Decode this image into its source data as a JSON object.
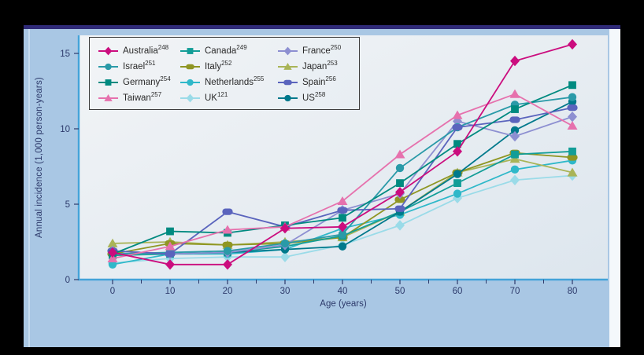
{
  "figure": {
    "kind": "epidemiology line figure",
    "palette": {
      "outer_background": "#000000",
      "panel_background": "#a9c7e4",
      "panel_top_border": "#2f2a78",
      "panel_right_strip": "#f4f8fb",
      "plot_background_start": "#f2f4f6",
      "plot_background_end": "#dde6ee",
      "axis_line": "#44a3d9",
      "tick_and_label_text": "#2d3a6b",
      "legend_border": "#3c3c3c",
      "legend_text": "#2a2a2a"
    }
  },
  "chart_data": {
    "type": "line",
    "title": "",
    "xlabel": "Age (years)",
    "ylabel": "Annual incidence (1,000 person-years)",
    "x": [
      0,
      10,
      20,
      30,
      40,
      50,
      60,
      70,
      80
    ],
    "x_tick_labels": [
      "0",
      "10",
      "20",
      "30",
      "40",
      "50",
      "60",
      "70",
      "80"
    ],
    "x_minor_ticks": [
      5,
      15,
      25,
      35,
      45,
      55,
      65,
      75
    ],
    "y_ticks": [
      0,
      5,
      10,
      15
    ],
    "y_tick_labels": [
      "0",
      "5",
      "10",
      "15"
    ],
    "ylim": [
      0,
      16.2
    ],
    "xlim": [
      -6,
      86
    ],
    "grid": false,
    "legend_position": "top-left",
    "series": [
      {
        "name": "Australia",
        "ref": "248",
        "marker": "diamond",
        "color": "#cb0d7e",
        "values": [
          1.8,
          1.0,
          1.0,
          3.4,
          3.5,
          5.8,
          8.5,
          14.5,
          15.6
        ]
      },
      {
        "name": "Canada",
        "ref": "249",
        "marker": "square",
        "color": "#129d97",
        "values": [
          1.6,
          1.7,
          1.8,
          2.2,
          2.9,
          4.5,
          6.4,
          8.3,
          8.5
        ]
      },
      {
        "name": "France",
        "ref": "250",
        "marker": "diamond",
        "color": "#8d8fd1",
        "values": [
          1.9,
          1.7,
          1.8,
          2.3,
          4.6,
          5.7,
          10.5,
          9.5,
          10.8
        ]
      },
      {
        "name": "Israel",
        "ref": "251",
        "marker": "circle",
        "color": "#2a9aa8",
        "values": [
          1.7,
          1.8,
          1.9,
          2.4,
          3.0,
          7.4,
          10.1,
          11.6,
          12.1
        ]
      },
      {
        "name": "Italy",
        "ref": "252",
        "marker": "pill",
        "color": "#8f9623",
        "values": [
          1.7,
          2.4,
          2.3,
          2.4,
          2.8,
          5.3,
          7.1,
          8.4,
          8.1
        ]
      },
      {
        "name": "Japan",
        "ref": "253",
        "marker": "triangle",
        "color": "#a9b457",
        "values": [
          2.4,
          2.5,
          2.3,
          2.5,
          2.8,
          4.5,
          7.1,
          8.0,
          7.1
        ]
      },
      {
        "name": "Germany",
        "ref": "254",
        "marker": "square",
        "color": "#008a80",
        "values": [
          1.7,
          3.2,
          3.1,
          3.6,
          4.1,
          6.4,
          9.0,
          11.3,
          12.9
        ]
      },
      {
        "name": "Netherlands",
        "ref": "255",
        "marker": "circle",
        "color": "#2fb8c9",
        "values": [
          1.0,
          1.7,
          1.7,
          2.0,
          3.4,
          4.3,
          5.7,
          7.3,
          7.9
        ]
      },
      {
        "name": "Spain",
        "ref": "256",
        "marker": "pill",
        "color": "#5a64bd",
        "values": [
          1.9,
          1.7,
          4.5,
          3.5,
          4.6,
          4.7,
          10.1,
          10.6,
          11.4
        ]
      },
      {
        "name": "Taiwan",
        "ref": "257",
        "marker": "triangle",
        "color": "#e671ad",
        "values": [
          1.4,
          2.2,
          3.3,
          3.5,
          5.2,
          8.3,
          10.9,
          12.3,
          10.2
        ]
      },
      {
        "name": "UK",
        "ref": "121",
        "marker": "diamond",
        "color": "#9adbe8",
        "values": [
          1.1,
          1.4,
          1.5,
          1.5,
          2.3,
          3.6,
          5.4,
          6.6,
          6.9
        ]
      },
      {
        "name": "US",
        "ref": "258",
        "marker": "circle",
        "color": "#00798c",
        "values": [
          1.9,
          1.7,
          1.8,
          2.0,
          2.2,
          4.5,
          7.0,
          9.9,
          11.8
        ]
      }
    ],
    "draw_order": [
      "UK",
      "Netherlands",
      "Japan",
      "Italy",
      "Canada",
      "US",
      "France",
      "Israel",
      "Spain",
      "Germany",
      "Taiwan",
      "Australia"
    ]
  }
}
